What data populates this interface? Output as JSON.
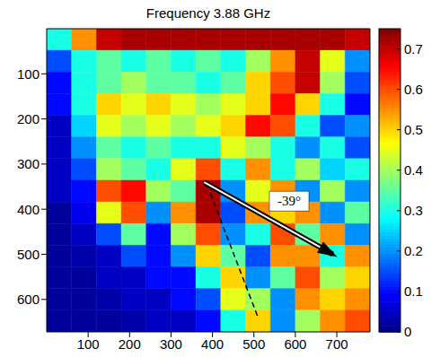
{
  "chart_data": {
    "type": "heatmap",
    "title": "Frequency 3.88 GHz",
    "annotations": [
      "-39°"
    ],
    "xlim": [
      0,
      780
    ],
    "xticks": [
      100,
      200,
      300,
      400,
      500,
      600,
      700
    ],
    "ylim": [
      0,
      672
    ],
    "yticks": [
      100,
      200,
      300,
      400,
      500,
      600
    ],
    "x": [
      30,
      90,
      150,
      210,
      270,
      330,
      390,
      450,
      510,
      570,
      630,
      690,
      750
    ],
    "y": [
      24,
      72,
      120,
      168,
      216,
      264,
      312,
      360,
      408,
      456,
      504,
      552,
      600,
      648
    ],
    "cells": [
      [
        0.3,
        0.55,
        0.7,
        0.72,
        0.72,
        0.72,
        0.72,
        0.72,
        0.72,
        0.72,
        0.72,
        0.72,
        0.7
      ],
      [
        0.15,
        0.3,
        0.35,
        0.3,
        0.35,
        0.3,
        0.35,
        0.3,
        0.4,
        0.55,
        0.7,
        0.45,
        0.2
      ],
      [
        0.1,
        0.3,
        0.35,
        0.4,
        0.35,
        0.35,
        0.3,
        0.35,
        0.5,
        0.6,
        0.7,
        0.4,
        0.15
      ],
      [
        0.1,
        0.3,
        0.5,
        0.45,
        0.5,
        0.45,
        0.4,
        0.45,
        0.5,
        0.65,
        0.5,
        0.3,
        0.1
      ],
      [
        0.05,
        0.25,
        0.45,
        0.4,
        0.45,
        0.4,
        0.45,
        0.5,
        0.65,
        0.6,
        0.3,
        0.15,
        0.2
      ],
      [
        0.05,
        0.2,
        0.35,
        0.3,
        0.35,
        0.3,
        0.3,
        0.45,
        0.4,
        0.3,
        0.2,
        0.3,
        0.15
      ],
      [
        0.05,
        0.15,
        0.4,
        0.35,
        0.3,
        0.45,
        0.6,
        0.3,
        0.55,
        0.3,
        0.4,
        0.25,
        0.3
      ],
      [
        0.05,
        0.1,
        0.6,
        0.65,
        0.4,
        0.35,
        0.72,
        0.2,
        0.45,
        0.55,
        0.2,
        0.4,
        0.2
      ],
      [
        0.02,
        0.08,
        0.45,
        0.6,
        0.2,
        0.55,
        0.72,
        0.15,
        0.55,
        0.5,
        0.55,
        0.2,
        0.35
      ],
      [
        0.02,
        0.05,
        0.15,
        0.35,
        0.1,
        0.4,
        0.6,
        0.2,
        0.3,
        0.6,
        0.35,
        0.55,
        0.2
      ],
      [
        0.02,
        0.03,
        0.05,
        0.15,
        0.1,
        0.2,
        0.5,
        0.35,
        0.15,
        0.55,
        0.55,
        0.3,
        0.55
      ],
      [
        0.02,
        0.02,
        0.05,
        0.05,
        0.1,
        0.1,
        0.3,
        0.5,
        0.2,
        0.35,
        0.6,
        0.4,
        0.5
      ],
      [
        0.02,
        0.02,
        0.03,
        0.05,
        0.05,
        0.1,
        0.15,
        0.45,
        0.4,
        0.2,
        0.55,
        0.5,
        0.55
      ],
      [
        0.02,
        0.02,
        0.02,
        0.03,
        0.05,
        0.05,
        0.1,
        0.3,
        0.5,
        0.2,
        0.4,
        0.55,
        0.6
      ]
    ],
    "color_range": [
      0,
      0.75
    ],
    "color_ticks": [
      0,
      0.1,
      0.2,
      0.3,
      0.4,
      0.5,
      0.6,
      0.7
    ]
  }
}
